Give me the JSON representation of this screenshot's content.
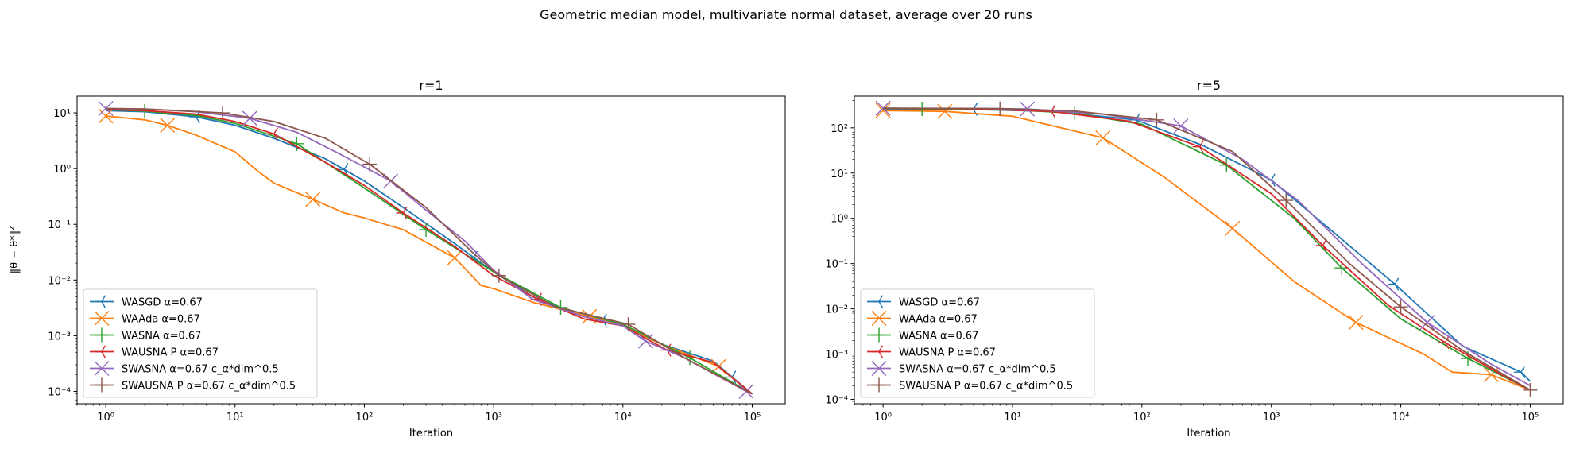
{
  "figure": {
    "suptitle": "Geometric median model, multivariate normal dataset, average over 20 runs"
  },
  "chart_data": [
    {
      "type": "line",
      "title": "r=1",
      "xlabel": "Iteration",
      "ylabel": "‖θ − θ*‖²",
      "xscale": "log",
      "yscale": "log",
      "xlim": [
        0.6,
        180000
      ],
      "ylim": [
        6e-05,
        20
      ],
      "xticks": [
        1,
        10,
        100,
        1000,
        10000,
        100000
      ],
      "xtick_labels": [
        "10⁰",
        "10¹",
        "10²",
        "10³",
        "10⁴",
        "10⁵"
      ],
      "yticks": [
        0.0001,
        0.001,
        0.01,
        0.1,
        1,
        10
      ],
      "ytick_labels": [
        "10⁻⁴",
        "10⁻³",
        "10⁻²",
        "10⁻¹",
        "10⁰",
        "10¹"
      ],
      "legend_position": "lower-left",
      "series": [
        {
          "name": "WASGD α=0.67",
          "color": "#1f77b4",
          "marker": "tri_left",
          "marker_x": [
            5,
            70,
            700,
            7000,
            70000
          ],
          "x": [
            1,
            2,
            5,
            10,
            20,
            50,
            100,
            200,
            500,
            1000,
            2000,
            5000,
            7000,
            10000,
            20000,
            50000,
            100000
          ],
          "y": [
            11,
            10.5,
            8.5,
            6,
            3.5,
            1.5,
            0.6,
            0.2,
            0.045,
            0.014,
            0.005,
            0.0022,
            0.0019,
            0.0015,
            0.0007,
            0.00035,
            9e-05
          ]
        },
        {
          "name": "WAAda α=0.67",
          "color": "#ff7f0e",
          "marker": "x",
          "marker_x": [
            1,
            3,
            40,
            500,
            5500,
            55000
          ],
          "x": [
            1,
            2,
            3,
            5,
            10,
            15,
            20,
            40,
            70,
            100,
            200,
            500,
            800,
            1000,
            2000,
            5500,
            10000,
            20000,
            55000,
            100000
          ],
          "y": [
            8.8,
            7.5,
            6,
            4,
            2.0,
            0.9,
            0.55,
            0.28,
            0.16,
            0.13,
            0.08,
            0.025,
            0.008,
            0.007,
            0.004,
            0.0022,
            0.0015,
            0.0007,
            0.00028,
            9e-05
          ]
        },
        {
          "name": "WASNA α=0.67",
          "color": "#2ca02c",
          "marker": "plus",
          "marker_x": [
            2,
            30,
            300,
            3300,
            33000
          ],
          "x": [
            1,
            2,
            5,
            10,
            30,
            100,
            300,
            1000,
            3300,
            10000,
            33000,
            100000
          ],
          "y": [
            11.5,
            10.8,
            9,
            6.5,
            2.8,
            0.45,
            0.08,
            0.014,
            0.0032,
            0.0016,
            0.0004,
            9e-05
          ]
        },
        {
          "name": "WAUSNA P α=0.67",
          "color": "#d62728",
          "marker": "tri_left",
          "marker_x": [
            20,
            200,
            2200,
            22000
          ],
          "x": [
            1,
            2,
            5,
            10,
            20,
            50,
            100,
            200,
            500,
            1000,
            2200,
            5000,
            10000,
            22000,
            50000,
            100000
          ],
          "y": [
            11.5,
            11,
            9.5,
            7,
            4.2,
            1.3,
            0.5,
            0.16,
            0.04,
            0.012,
            0.0045,
            0.002,
            0.0015,
            0.00055,
            0.00033,
            9e-05
          ]
        },
        {
          "name": "SWASNA α=0.67 c_α*dim^0.5",
          "color": "#9467bd",
          "marker": "x",
          "marker_x": [
            1,
            13,
            160,
            15000,
            90000
          ],
          "x": [
            1,
            2,
            5,
            13,
            30,
            60,
            160,
            300,
            600,
            1000,
            2000,
            5000,
            10000,
            15000,
            30000,
            90000,
            100000
          ],
          "y": [
            12,
            11.8,
            10.5,
            8,
            4.5,
            2,
            0.6,
            0.18,
            0.05,
            0.015,
            0.0045,
            0.0022,
            0.0015,
            0.0008,
            0.0004,
            0.0001,
            9e-05
          ]
        },
        {
          "name": "SWAUSNA P α=0.67 c_α*dim^0.5",
          "color": "#8c564b",
          "marker": "plus",
          "marker_x": [
            8,
            110,
            1100,
            11000
          ],
          "x": [
            1,
            2,
            8,
            20,
            50,
            110,
            300,
            700,
            1100,
            3000,
            11000,
            30000,
            100000
          ],
          "y": [
            12,
            11.8,
            10,
            7,
            3.5,
            1.2,
            0.2,
            0.03,
            0.012,
            0.0033,
            0.0016,
            0.0004,
            9e-05
          ]
        }
      ]
    },
    {
      "type": "line",
      "title": "r=5",
      "xlabel": "Iteration",
      "ylabel": "",
      "xscale": "log",
      "yscale": "log",
      "xlim": [
        0.6,
        180000
      ],
      "ylim": [
        8e-05,
        500
      ],
      "xticks": [
        1,
        10,
        100,
        1000,
        10000,
        100000
      ],
      "xtick_labels": [
        "10⁰",
        "10¹",
        "10²",
        "10³",
        "10⁴",
        "10⁵"
      ],
      "yticks": [
        0.0001,
        0.001,
        0.01,
        0.1,
        1,
        10,
        100
      ],
      "ytick_labels": [
        "10⁻⁴",
        "10⁻³",
        "10⁻²",
        "10⁻¹",
        "10⁰",
        "10¹",
        "10²"
      ],
      "legend_position": "lower-left",
      "series": [
        {
          "name": "WASGD α=0.67",
          "color": "#1f77b4",
          "marker": "tri_left",
          "marker_x": [
            5,
            90,
            1000,
            9000,
            85000
          ],
          "x": [
            1,
            5,
            20,
            90,
            300,
            1000,
            3000,
            9000,
            30000,
            85000,
            100000
          ],
          "y": [
            260,
            255,
            230,
            150,
            40,
            7,
            0.5,
            0.035,
            0.0015,
            0.0004,
            0.00025
          ]
        },
        {
          "name": "WAAda α=0.67",
          "color": "#ff7f0e",
          "marker": "x",
          "marker_x": [
            1,
            3,
            50,
            500,
            4500,
            50000
          ],
          "x": [
            1,
            3,
            10,
            50,
            150,
            500,
            1500,
            4500,
            15000,
            25000,
            50000,
            100000
          ],
          "y": [
            240,
            230,
            180,
            60,
            8,
            0.6,
            0.04,
            0.005,
            0.001,
            0.0004,
            0.00035,
            0.00016
          ]
        },
        {
          "name": "WASNA α=0.67",
          "color": "#2ca02c",
          "marker": "plus",
          "marker_x": [
            2,
            30,
            450,
            3500,
            33000
          ],
          "x": [
            1,
            2,
            10,
            30,
            100,
            450,
            1500,
            3500,
            10000,
            33000,
            100000
          ],
          "y": [
            265,
            262,
            250,
            210,
            120,
            15,
            1.0,
            0.08,
            0.006,
            0.0008,
            0.00016
          ]
        },
        {
          "name": "WAUSNA P α=0.67",
          "color": "#d62728",
          "marker": "tri_left",
          "marker_x": [
            20,
            280,
            2500,
            22000
          ],
          "x": [
            1,
            5,
            20,
            80,
            280,
            1000,
            2500,
            8000,
            22000,
            60000,
            100000
          ],
          "y": [
            268,
            262,
            230,
            140,
            38,
            3.5,
            0.25,
            0.012,
            0.0018,
            0.00035,
            0.00016
          ]
        },
        {
          "name": "SWASNA α=0.67 c_α*dim^0.5",
          "color": "#9467bd",
          "marker": "x",
          "marker_x": [
            1,
            13,
            200,
            16000
          ],
          "x": [
            1,
            5,
            13,
            50,
            200,
            600,
            1600,
            5000,
            16000,
            50000,
            100000
          ],
          "y": [
            270,
            268,
            260,
            200,
            110,
            20,
            2.5,
            0.1,
            0.005,
            0.0006,
            0.0002
          ]
        },
        {
          "name": "SWAUSNA P α=0.67 c_α*dim^0.5",
          "color": "#8c564b",
          "marker": "plus",
          "marker_x": [
            8,
            130,
            1300,
            10000,
            100000
          ],
          "x": [
            1,
            8,
            30,
            130,
            500,
            1300,
            4000,
            10000,
            30000,
            100000
          ],
          "y": [
            270,
            265,
            235,
            150,
            30,
            2.5,
            0.1,
            0.011,
            0.0012,
            0.00016
          ]
        }
      ]
    }
  ]
}
